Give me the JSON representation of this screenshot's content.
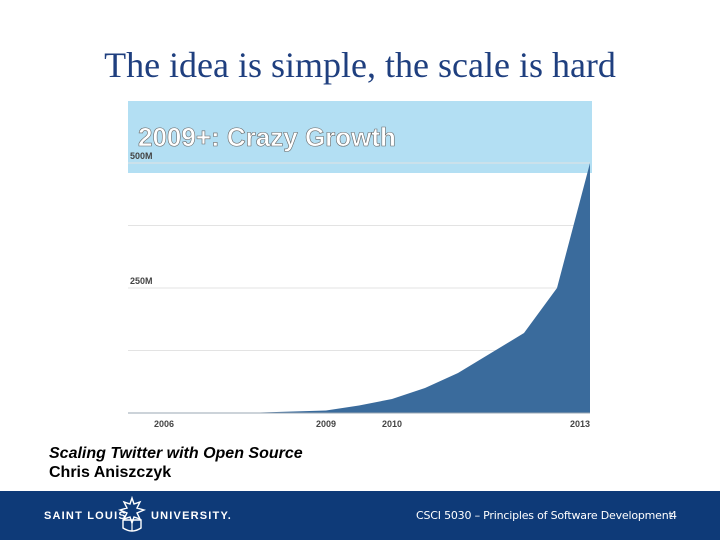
{
  "slide": {
    "title": "The idea is simple, the scale is hard",
    "caption_line1": "Scaling Twitter with Open Source",
    "caption_line2": "Chris Aniszczyk"
  },
  "footer": {
    "university_left": "SAINT LOUIS",
    "university_right": "UNIVERSITY.",
    "course": "CSCI 5030 – Principles of Software Development",
    "page_number": "4",
    "background_color": "#0e3a78"
  },
  "chart_data": {
    "type": "area",
    "title": "2009+: Crazy Growth",
    "xlabel": "",
    "ylabel": "",
    "x_ticks": [
      "2006",
      "2009",
      "2010",
      "2013"
    ],
    "y_ticks": [
      "250M",
      "500M"
    ],
    "x": [
      2006,
      2008,
      2009,
      2009.5,
      2010,
      2010.5,
      2011,
      2012,
      2012.5,
      2013
    ],
    "values": [
      0,
      1,
      5,
      15,
      28,
      50,
      80,
      160,
      250,
      500
    ],
    "xlim": [
      2006,
      2013
    ],
    "ylim": [
      0,
      500
    ],
    "grid": true,
    "fill_color": "#3a6b9c",
    "title_band_color": "#b3dff3"
  }
}
